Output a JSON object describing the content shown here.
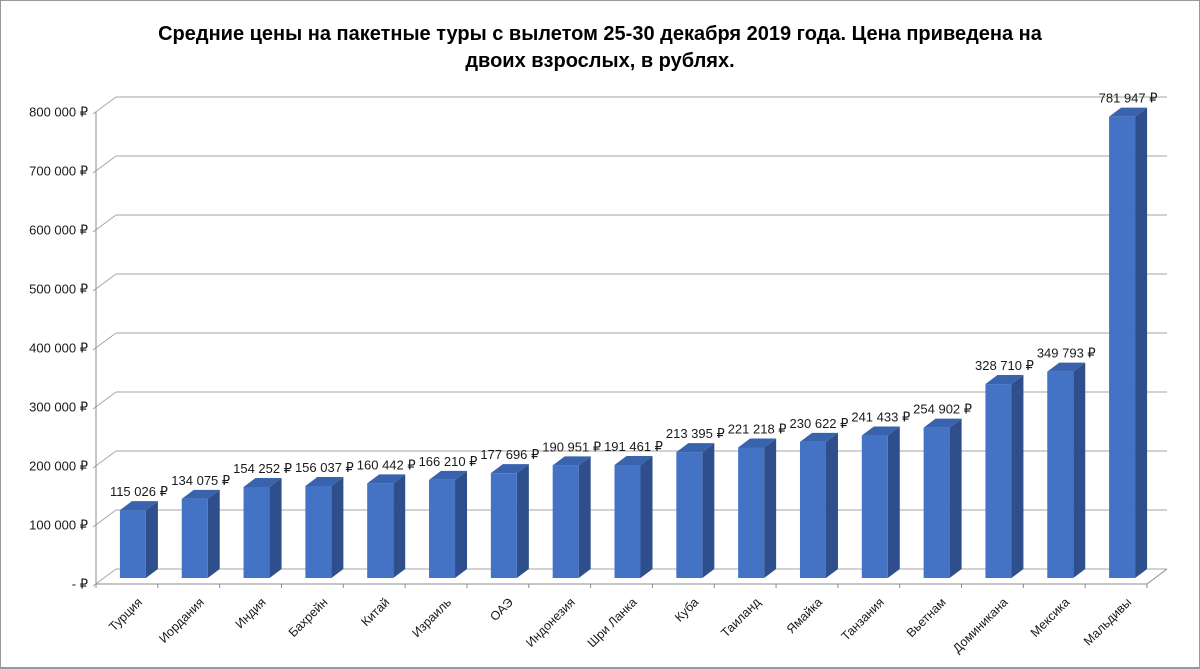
{
  "page": {
    "background": "#ffffff",
    "border_color": "#999999"
  },
  "chart_data": {
    "type": "bar",
    "style": "3d-column",
    "title": "Средние цены на пакетные туры с вылетом 25-30 декабря 2019 года. Цена приведена на двоих взрослых, в рублях.",
    "title_lines": [
      "Средние цены на пакетные туры с вылетом 25-30 декабря 2019 года. Цена приведена на",
      "двоих взрослых, в рублях."
    ],
    "categories": [
      "Турция",
      "Иордания",
      "Индия",
      "Бахрейн",
      "Китай",
      "Израиль",
      "ОАЭ",
      "Индонезия",
      "Шри Ланка",
      "Куба",
      "Таиланд",
      "Ямайка",
      "Танзания",
      "Вьетнам",
      "Доминикана",
      "Мексика",
      "Мальдивы"
    ],
    "values": [
      115026,
      134075,
      154252,
      156037,
      160442,
      166210,
      177696,
      190951,
      191461,
      213395,
      221218,
      230622,
      241433,
      254902,
      328710,
      349793,
      781947
    ],
    "data_labels": [
      "115 026 ₽",
      "134 075 ₽",
      "154 252 ₽",
      "156 037 ₽",
      "160 442 ₽",
      "166 210 ₽",
      "177 696 ₽",
      "190 951 ₽",
      "191 461 ₽",
      "213 395 ₽",
      "221 218 ₽",
      "230 622 ₽",
      "241 433 ₽",
      "254 902 ₽",
      "328 710 ₽",
      "349 793 ₽",
      "781 947 ₽"
    ],
    "currency_symbol": "₽",
    "y_axis": {
      "min": 0,
      "max": 800000,
      "step": 100000,
      "tick_labels": [
        "- ₽",
        "100 000 ₽",
        "200 000 ₽",
        "300 000 ₽",
        "400 000 ₽",
        "500 000 ₽",
        "600 000 ₽",
        "700 000 ₽",
        "800 000 ₽"
      ]
    },
    "legend": "none",
    "grid": true,
    "colors": {
      "bar_front": "#4472C4",
      "bar_top": "#3A63AE",
      "bar_side": "#2F4F8C",
      "gridline": "#A6A6A6",
      "axis": "#8C8C8C",
      "label_text": "#1a1a1a",
      "title_text": "#000000"
    }
  }
}
